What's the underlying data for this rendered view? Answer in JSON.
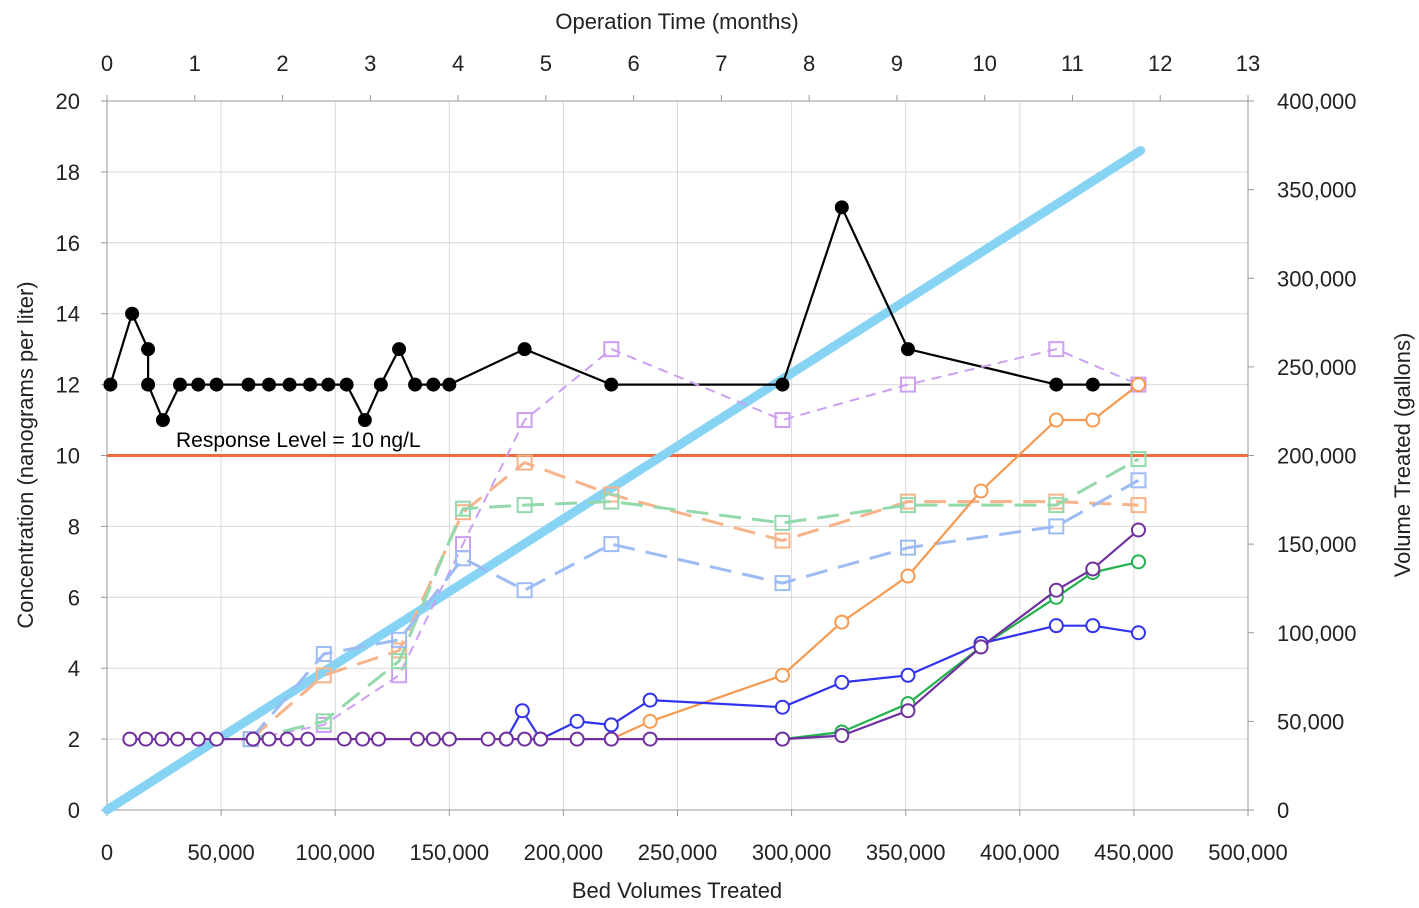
{
  "chart_data": {
    "type": "line",
    "xlabel": "Bed Volumes Treated",
    "ylabel": "Concentration (nanograms per liter)",
    "y2label": "Volume Treated (gallons)",
    "x2label": "Operation Time (months)",
    "xlim": [
      0,
      500000
    ],
    "ylim": [
      0,
      20
    ],
    "y2lim": [
      0,
      400000
    ],
    "x2lim": [
      0,
      13
    ],
    "x_ticks": [
      "0",
      "50,000",
      "100,000",
      "150,000",
      "200,000",
      "250,000",
      "300,000",
      "350,000",
      "400,000",
      "450,000",
      "500,000"
    ],
    "y_ticks": [
      "0",
      "2",
      "4",
      "6",
      "8",
      "10",
      "12",
      "14",
      "16",
      "18",
      "20"
    ],
    "y2_ticks": [
      "0",
      "50,000",
      "100,000",
      "150,000",
      "200,000",
      "250,000",
      "300,000",
      "350,000",
      "400,000"
    ],
    "x2_ticks": [
      "0",
      "1",
      "2",
      "3",
      "4",
      "5",
      "6",
      "7",
      "8",
      "9",
      "10",
      "11",
      "12",
      "13"
    ],
    "grid": true,
    "response_level": {
      "value": 10,
      "label": "Response Level = 10 ng/L",
      "color": "#ee6a3f"
    },
    "series": [
      {
        "color": "#87d3f3",
        "style": "thick-solid",
        "marker": "none",
        "axis": "y2",
        "points": [
          [
            0,
            0
          ],
          [
            453000,
            372000
          ]
        ]
      },
      {
        "color": "#000000",
        "style": "solid",
        "marker": "filled-circle",
        "axis": "y",
        "points": [
          [
            1500,
            12
          ],
          [
            11000,
            14
          ],
          [
            18000,
            13
          ],
          [
            18000,
            12
          ],
          [
            24500,
            11
          ],
          [
            32000,
            12
          ],
          [
            40000,
            12
          ],
          [
            48000,
            12
          ],
          [
            62000,
            12
          ],
          [
            71000,
            12
          ],
          [
            80000,
            12
          ],
          [
            89000,
            12
          ],
          [
            97000,
            12
          ],
          [
            105000,
            12
          ],
          [
            113000,
            11
          ],
          [
            120000,
            12
          ],
          [
            128000,
            13
          ],
          [
            135000,
            12
          ],
          [
            143000,
            12
          ],
          [
            150000,
            12
          ],
          [
            183000,
            13
          ],
          [
            221000,
            12
          ],
          [
            296000,
            12
          ],
          [
            322000,
            17
          ],
          [
            351000,
            13
          ],
          [
            416000,
            12
          ],
          [
            432000,
            12
          ],
          [
            452000,
            12
          ]
        ]
      },
      {
        "color": "#cc9ff3",
        "style": "dash",
        "marker": "open-square",
        "axis": "y",
        "points": [
          [
            63000,
            2
          ],
          [
            95000,
            2.4
          ],
          [
            128000,
            3.8
          ],
          [
            156000,
            7.5
          ],
          [
            183000,
            11
          ],
          [
            221000,
            13
          ],
          [
            296000,
            11
          ],
          [
            351000,
            12
          ],
          [
            416000,
            13
          ],
          [
            452000,
            12
          ]
        ]
      },
      {
        "color": "#f7b48a",
        "style": "long-dash",
        "marker": "open-square",
        "axis": "y",
        "points": [
          [
            63000,
            2
          ],
          [
            95000,
            3.8
          ],
          [
            128000,
            4.5
          ],
          [
            156000,
            8.4
          ],
          [
            183000,
            9.8
          ],
          [
            221000,
            8.9
          ],
          [
            296000,
            7.6
          ],
          [
            351000,
            8.7
          ],
          [
            416000,
            8.7
          ],
          [
            452000,
            8.6
          ]
        ]
      },
      {
        "color": "#93d9ac",
        "style": "long-dash",
        "marker": "open-square",
        "axis": "y",
        "points": [
          [
            63000,
            2
          ],
          [
            95000,
            2.5
          ],
          [
            128000,
            4.2
          ],
          [
            156000,
            8.5
          ],
          [
            183000,
            8.6
          ],
          [
            221000,
            8.7
          ],
          [
            296000,
            8.1
          ],
          [
            351000,
            8.6
          ],
          [
            416000,
            8.6
          ],
          [
            452000,
            9.9
          ]
        ]
      },
      {
        "color": "#9cbcf3",
        "style": "long-dash",
        "marker": "open-square",
        "axis": "y",
        "points": [
          [
            63000,
            2
          ],
          [
            95000,
            4.4
          ],
          [
            128000,
            4.8
          ],
          [
            156000,
            7.1
          ],
          [
            183000,
            6.2
          ],
          [
            221000,
            7.5
          ],
          [
            296000,
            6.4
          ],
          [
            351000,
            7.4
          ],
          [
            416000,
            8
          ],
          [
            452000,
            9.3
          ]
        ]
      },
      {
        "color": "#f59a50",
        "style": "solid",
        "marker": "open-circle",
        "axis": "y",
        "points": [
          [
            221000,
            2
          ],
          [
            238000,
            2.5
          ],
          [
            296000,
            3.8
          ],
          [
            322000,
            5.3
          ],
          [
            351000,
            6.6
          ],
          [
            383000,
            9
          ],
          [
            416000,
            11
          ],
          [
            432000,
            11
          ],
          [
            452000,
            12
          ]
        ]
      },
      {
        "color": "#22b14c",
        "style": "solid",
        "marker": "open-circle",
        "axis": "y",
        "points": [
          [
            296000,
            2
          ],
          [
            322000,
            2.2
          ],
          [
            351000,
            3
          ],
          [
            383000,
            4.6
          ],
          [
            416000,
            6
          ],
          [
            432000,
            6.7
          ],
          [
            452000,
            7
          ]
        ]
      },
      {
        "color": "#3333ee",
        "style": "solid",
        "marker": "open-circle",
        "axis": "y",
        "points": [
          [
            175000,
            2
          ],
          [
            182000,
            2.8
          ],
          [
            190000,
            2
          ],
          [
            206000,
            2.5
          ],
          [
            221000,
            2.4
          ],
          [
            238000,
            3.1
          ],
          [
            296000,
            2.9
          ],
          [
            322000,
            3.6
          ],
          [
            351000,
            3.8
          ],
          [
            383000,
            4.7
          ],
          [
            416000,
            5.2
          ],
          [
            432000,
            5.2
          ],
          [
            452000,
            5
          ]
        ]
      },
      {
        "color": "#7030a0",
        "style": "solid",
        "marker": "open-circle",
        "axis": "y",
        "points": [
          [
            10000,
            2
          ],
          [
            17000,
            2
          ],
          [
            24000,
            2
          ],
          [
            31000,
            2
          ],
          [
            40000,
            2
          ],
          [
            48000,
            2
          ],
          [
            64000,
            2
          ],
          [
            71000,
            2
          ],
          [
            79000,
            2
          ],
          [
            88000,
            2
          ],
          [
            104000,
            2
          ],
          [
            112000,
            2
          ],
          [
            119000,
            2
          ],
          [
            136000,
            2
          ],
          [
            143000,
            2
          ],
          [
            150000,
            2
          ],
          [
            167000,
            2
          ],
          [
            175000,
            2
          ],
          [
            183000,
            2
          ],
          [
            190000,
            2
          ],
          [
            206000,
            2
          ],
          [
            221000,
            2
          ],
          [
            238000,
            2
          ],
          [
            296000,
            2
          ],
          [
            322000,
            2.1
          ],
          [
            351000,
            2.8
          ],
          [
            383000,
            4.6
          ],
          [
            416000,
            6.2
          ],
          [
            432000,
            6.8
          ],
          [
            452000,
            7.9
          ]
        ]
      }
    ]
  }
}
